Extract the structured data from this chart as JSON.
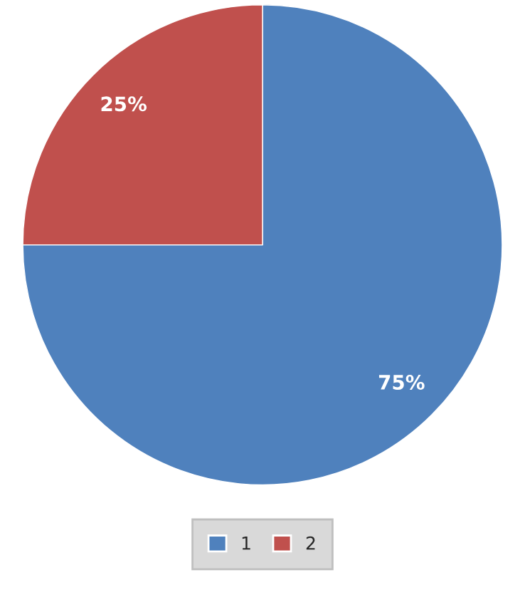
{
  "chart_data": {
    "type": "pie",
    "categories": [
      "1",
      "2"
    ],
    "values": [
      75,
      25
    ],
    "colors": [
      "#4f81bd",
      "#c0504d"
    ],
    "value_labels": [
      "75%",
      "25%"
    ],
    "legend": "bottom"
  }
}
